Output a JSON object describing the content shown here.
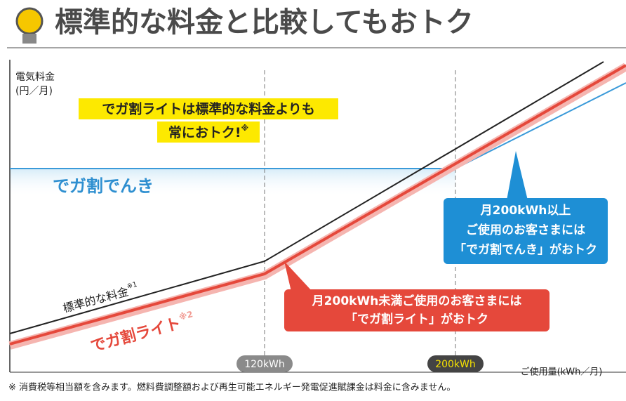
{
  "header": {
    "title": "標準的な料金と比較してもおトク"
  },
  "axis": {
    "y_label_1": "電気料金",
    "y_label_2": "(円／月)",
    "x_label": "ご使用量(kWh／月)",
    "tick_1": "120kWh",
    "tick_2": "200kWh"
  },
  "callout": {
    "line_1": "でガ割ライトは標準的な料金よりも",
    "line_2": "常におトク!",
    "note": "※"
  },
  "lines": {
    "denki": "でガ割でんき",
    "standard": "標準的な料金",
    "standard_note": "※1",
    "light": "でガ割ライト",
    "light_note": "※2"
  },
  "blue_box": {
    "line_1": "月200kWh以上",
    "line_2": "ご使用のお客さまには",
    "line_3": "「でガ割でんき」がおトク"
  },
  "red_box": {
    "line_1": "月200kWh未満ご使用のお客さまには",
    "line_2": "「でガ割ライト」がおトク"
  },
  "footnote": "※ 消費税等相当額を含みます。燃料費調整額および再生可能エネルギー発電促進賦課金は料金に含みません。"
}
